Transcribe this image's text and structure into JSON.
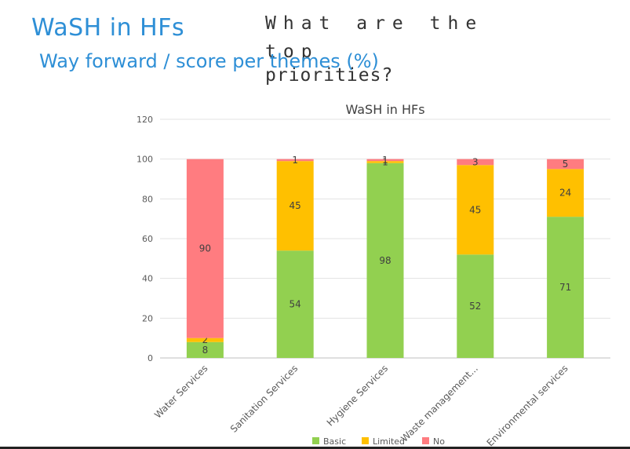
{
  "slide": {
    "title": "WaSH in HFs",
    "question_line1": "What are the top",
    "question_line2": "priorities?",
    "subtitle": "Way forward / score per themes (%)"
  },
  "chart_data": {
    "type": "bar",
    "stacked": true,
    "title": "WaSH in HFs",
    "categories": [
      "Water Services",
      "Sanitation Services",
      "Hygiene Services",
      "Waste management...",
      "Environmental services"
    ],
    "series": [
      {
        "name": "Basic",
        "color": "#92d050",
        "values": [
          8,
          54,
          98,
          52,
          71
        ]
      },
      {
        "name": "Limited",
        "color": "#ffc000",
        "values": [
          2,
          45,
          1,
          45,
          24
        ]
      },
      {
        "name": "No",
        "color": "#ff7c80",
        "values": [
          90,
          1,
          1,
          3,
          5
        ]
      }
    ],
    "ylim": [
      0,
      120
    ],
    "yticks": [
      0,
      20,
      40,
      60,
      80,
      100,
      120
    ],
    "grid": true,
    "legend": "bottom"
  }
}
